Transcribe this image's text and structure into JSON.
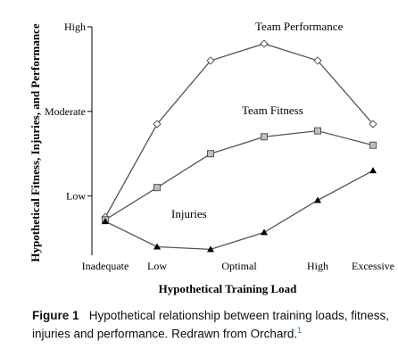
{
  "chart_data": {
    "type": "line",
    "categories": [
      "Inadequate",
      "Low",
      "",
      "Optimal",
      "",
      "High",
      "Excessive"
    ],
    "y_ticks": [
      "Low",
      "Moderate",
      "High"
    ],
    "y_tick_values": [
      1,
      2,
      3
    ],
    "ylim": [
      0.3,
      3
    ],
    "xlabel": "Hypothetical Training Load",
    "ylabel": "Hypothetical Fitness, Injuries, and Performance",
    "series": [
      {
        "name": "Team Performance",
        "marker": "diamond",
        "values": [
          0.75,
          1.85,
          2.6,
          2.8,
          2.6,
          1.85,
          null
        ]
      },
      {
        "name": "Team Fitness",
        "marker": "square",
        "values": [
          0.72,
          1.1,
          1.5,
          1.7,
          1.77,
          1.6,
          null
        ]
      },
      {
        "name": "Injuries",
        "marker": "triangle",
        "values": [
          0.7,
          0.4,
          0.37,
          0.57,
          0.95,
          1.3,
          null
        ]
      }
    ],
    "grid": false,
    "legend": "none"
  },
  "caption": {
    "figure_label": "Figure 1",
    "text": "Hypothetical relationship between training loads, fitness, injuries and performance. Redrawn from Orchard.",
    "ref": "1"
  },
  "colors": {
    "line": "#555555",
    "marker_fill": "#bfbfbf",
    "text": "#000000",
    "ref": "#1f6fbf"
  }
}
